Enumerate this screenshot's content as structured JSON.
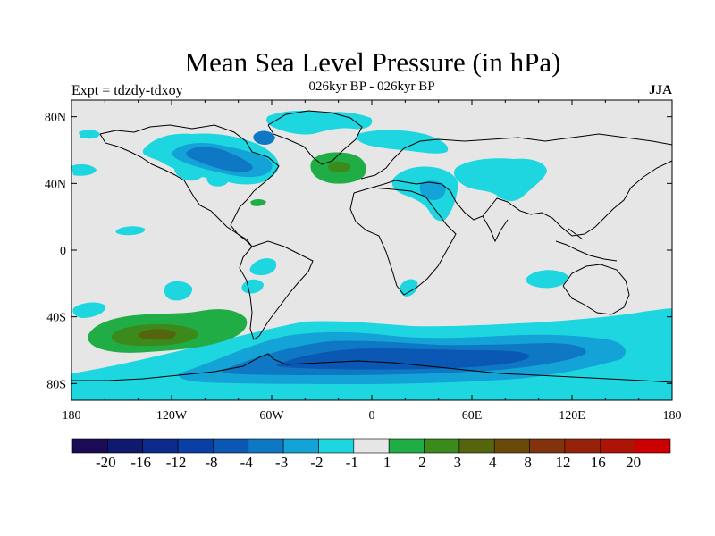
{
  "title": "Mean Sea Level Pressure (in hPa)",
  "subtitle": "026kyr BP - 026kyr BP",
  "experiment": "Expt = tdzdy-tdxoy",
  "season": "JJA",
  "map": {
    "background_color": "#e6e6e6",
    "lat_ticks": [
      "80N",
      "40N",
      "0",
      "40S",
      "80S"
    ],
    "lon_ticks": [
      "180",
      "120W",
      "60W",
      "0",
      "60E",
      "120E",
      "180"
    ]
  },
  "colorbar": {
    "colors": [
      "#1b0a55",
      "#0f1a6f",
      "#0c2b8c",
      "#0a3fa5",
      "#0b57b4",
      "#0f78c4",
      "#14a3d6",
      "#1ed6e0",
      "#e6e6e6",
      "#20ad45",
      "#3b8a1b",
      "#55650e",
      "#6a4a0b",
      "#82320c",
      "#96220a",
      "#ad1407",
      "#cc0000"
    ],
    "labels": [
      "-20",
      "-16",
      "-12",
      "-8",
      "-4",
      "-3",
      "-2",
      "-1",
      "1",
      "2",
      "3",
      "4",
      "8",
      "12",
      "16",
      "20"
    ]
  },
  "colors": {
    "cyan": "#1ed6e0",
    "light_blue": "#14a3d6",
    "mid_blue": "#0f78c4",
    "dark_blue": "#0b57b4",
    "green": "#20ad45",
    "dark_green": "#3b8a1b",
    "olive": "#55650e"
  }
}
